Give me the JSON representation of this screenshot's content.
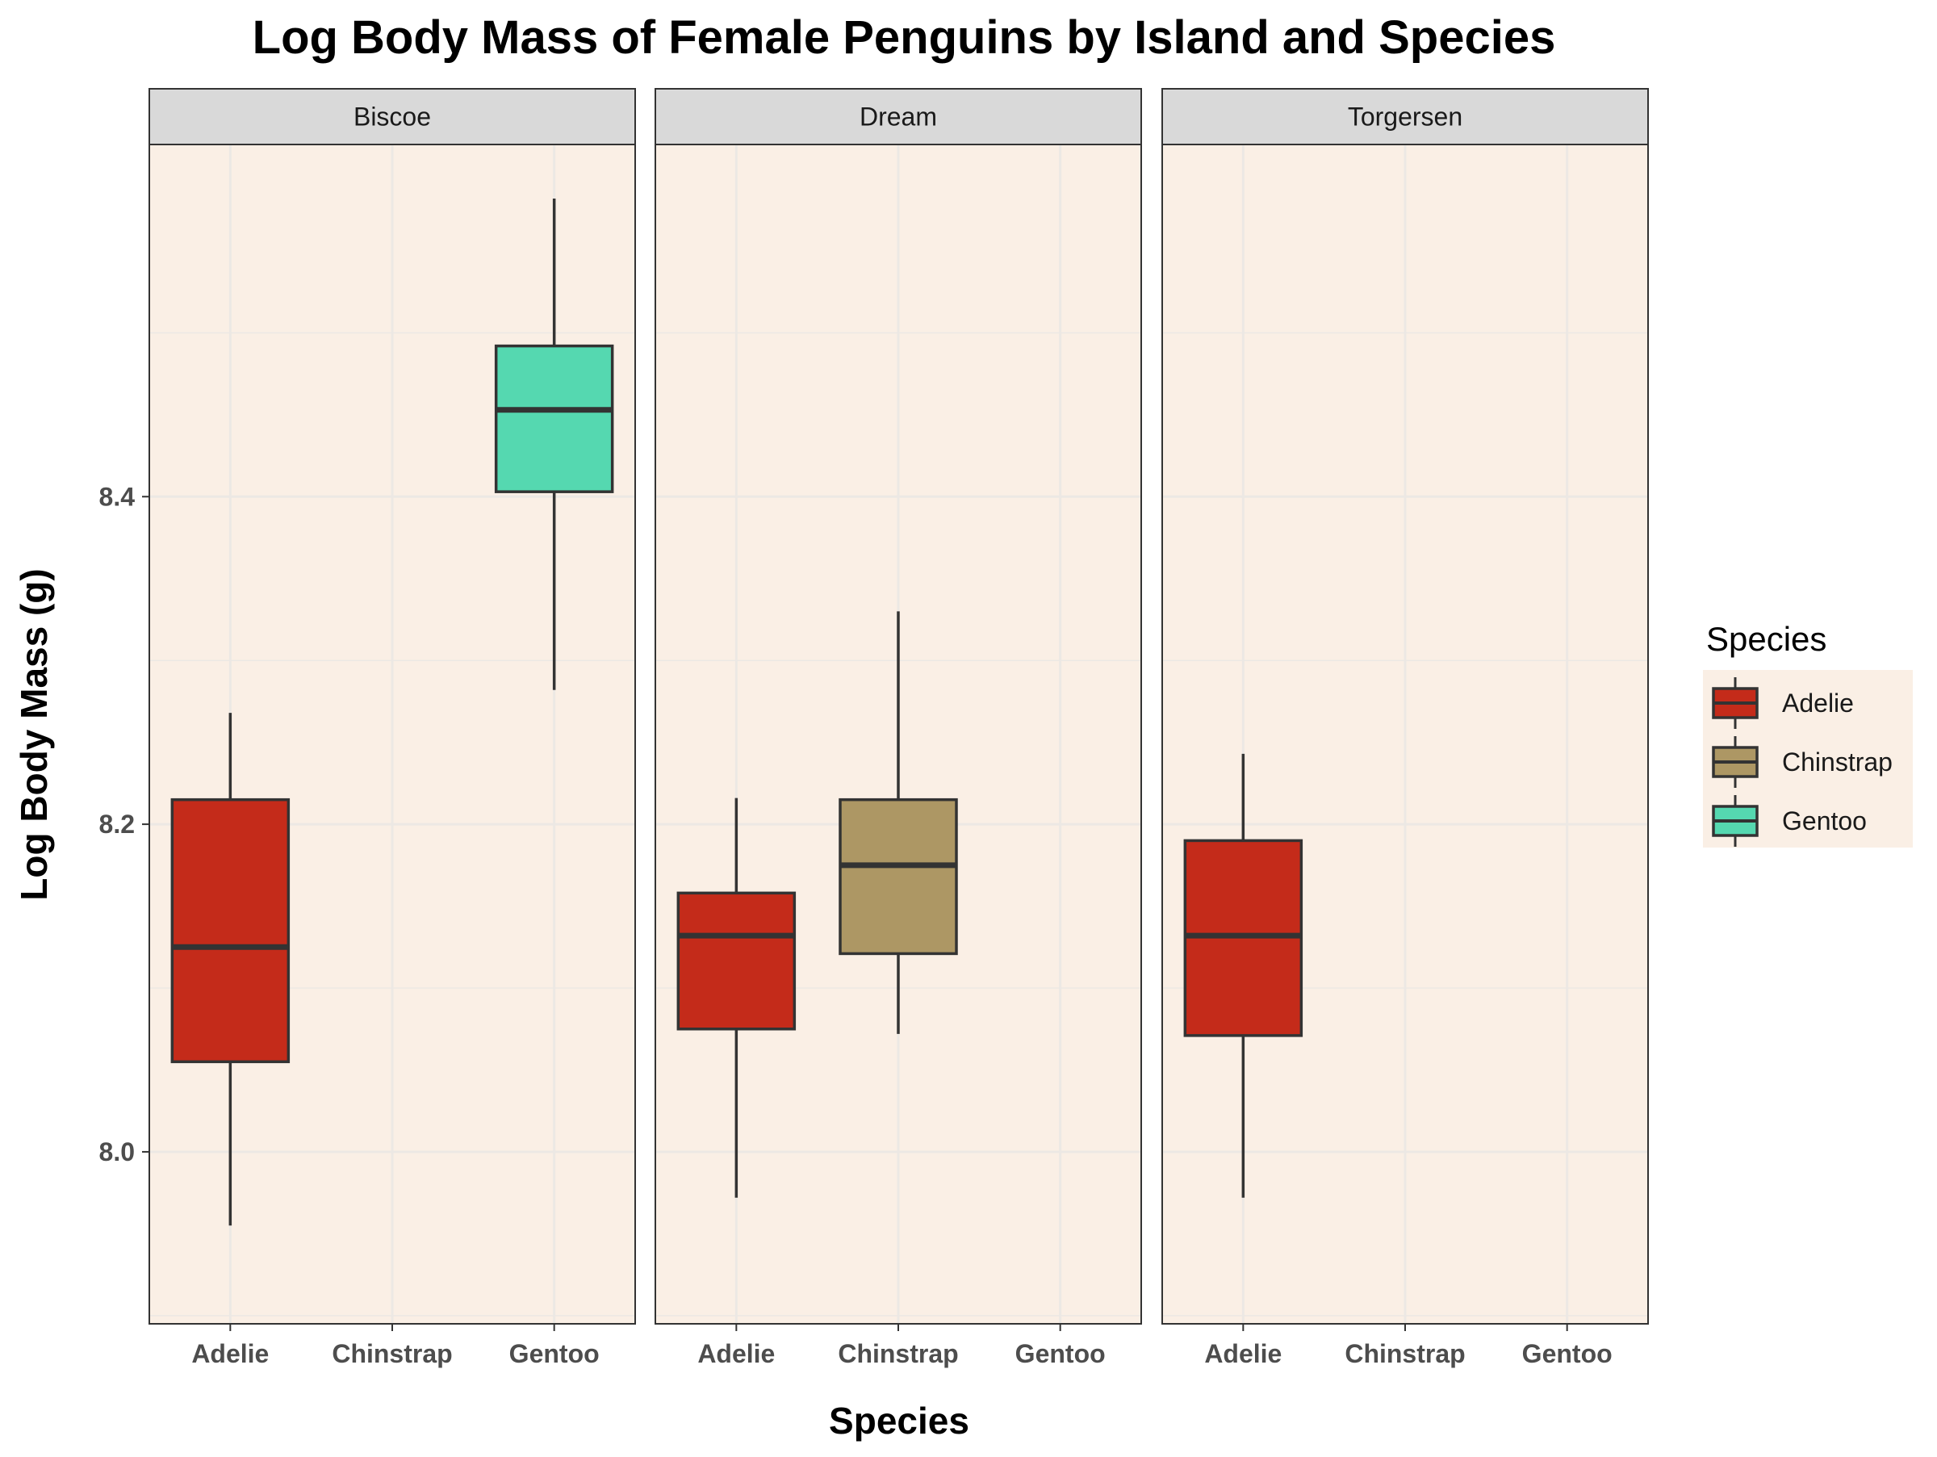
{
  "chart_data": {
    "type": "boxplot",
    "title": "Log Body Mass of Female Penguins by Island and Species",
    "xlabel": "Species",
    "ylabel": "Log Body Mass (g)",
    "ylim": [
      7.895,
      8.615
    ],
    "yticks": [
      8.0,
      8.2,
      8.4
    ],
    "ytick_labels": [
      "8.0",
      "8.2",
      "8.4"
    ],
    "categories": [
      "Adelie",
      "Chinstrap",
      "Gentoo"
    ],
    "facets": [
      "Biscoe",
      "Dream",
      "Torgersen"
    ],
    "grid": true,
    "legend": {
      "title": "Species",
      "position": "right",
      "entries": [
        "Adelie",
        "Chinstrap",
        "Gentoo"
      ]
    },
    "colors": {
      "Adelie": "#c42b1a",
      "Chinstrap": "#ad9764",
      "Gentoo": "#55d8b0",
      "panel_background": "#faefe5",
      "strip_background": "#d9d9d9",
      "grid": "#ece8e4",
      "box_outline": "#333333"
    },
    "series": [
      {
        "facet": "Biscoe",
        "species": "Adelie",
        "whisker_low": 7.955,
        "q1": 8.055,
        "median": 8.125,
        "q3": 8.215,
        "whisker_high": 8.268
      },
      {
        "facet": "Biscoe",
        "species": "Gentoo",
        "whisker_low": 8.282,
        "q1": 8.403,
        "median": 8.453,
        "q3": 8.492,
        "whisker_high": 8.582
      },
      {
        "facet": "Dream",
        "species": "Adelie",
        "whisker_low": 7.972,
        "q1": 8.075,
        "median": 8.132,
        "q3": 8.158,
        "whisker_high": 8.216
      },
      {
        "facet": "Dream",
        "species": "Chinstrap",
        "whisker_low": 8.072,
        "q1": 8.121,
        "median": 8.175,
        "q3": 8.215,
        "whisker_high": 8.33
      },
      {
        "facet": "Torgersen",
        "species": "Adelie",
        "whisker_low": 7.972,
        "q1": 8.071,
        "median": 8.132,
        "q3": 8.19,
        "whisker_high": 8.243
      }
    ]
  }
}
